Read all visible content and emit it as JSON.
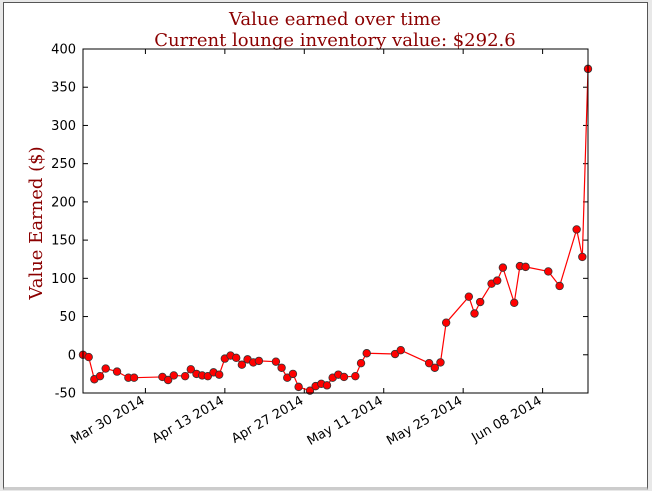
{
  "chart_data": {
    "type": "line",
    "title": "Value earned over time",
    "subtitle": "Current lounge inventory value: $292.6",
    "xlabel": "",
    "ylabel": "Value Earned ($)",
    "xlim": [
      "2014-03-19",
      "2014-06-16"
    ],
    "ylim": [
      -50,
      400
    ],
    "yticks": [
      -50,
      0,
      50,
      100,
      150,
      200,
      250,
      300,
      350,
      400
    ],
    "xticks": [
      {
        "date": "2014-03-30",
        "label": "Mar 30 2014"
      },
      {
        "date": "2014-04-13",
        "label": "Apr 13 2014"
      },
      {
        "date": "2014-04-27",
        "label": "Apr 27 2014"
      },
      {
        "date": "2014-05-11",
        "label": "May 11 2014"
      },
      {
        "date": "2014-05-25",
        "label": "May 25 2014"
      },
      {
        "date": "2014-06-08",
        "label": "Jun 08 2014"
      }
    ],
    "grid": false,
    "series": [
      {
        "name": "value",
        "color": "#ff0000",
        "x": [
          "2014-03-19",
          "2014-03-20",
          "2014-03-21",
          "2014-03-22",
          "2014-03-23",
          "2014-03-25",
          "2014-03-27",
          "2014-03-28",
          "2014-04-02",
          "2014-04-03",
          "2014-04-04",
          "2014-04-06",
          "2014-04-07",
          "2014-04-08",
          "2014-04-09",
          "2014-04-10",
          "2014-04-11",
          "2014-04-12",
          "2014-04-13",
          "2014-04-14",
          "2014-04-15",
          "2014-04-16",
          "2014-04-17",
          "2014-04-18",
          "2014-04-19",
          "2014-04-22",
          "2014-04-23",
          "2014-04-24",
          "2014-04-25",
          "2014-04-26",
          "2014-04-28",
          "2014-04-29",
          "2014-04-30",
          "2014-05-01",
          "2014-05-02",
          "2014-05-03",
          "2014-05-04",
          "2014-05-06",
          "2014-05-07",
          "2014-05-08",
          "2014-05-13",
          "2014-05-14",
          "2014-05-19",
          "2014-05-20",
          "2014-05-21",
          "2014-05-22",
          "2014-05-26",
          "2014-05-27",
          "2014-05-28",
          "2014-05-30",
          "2014-05-31",
          "2014-06-01",
          "2014-06-03",
          "2014-06-04",
          "2014-06-05",
          "2014-06-09",
          "2014-06-11",
          "2014-06-14",
          "2014-06-15",
          "2014-06-16"
        ],
        "y": [
          0,
          -3,
          -32,
          -28,
          -18,
          -22,
          -30,
          -30,
          -29,
          -33,
          -27,
          -28,
          -19,
          -25,
          -27,
          -28,
          -23,
          -26,
          -5,
          -1,
          -4,
          -13,
          -6,
          -10,
          -8,
          -9,
          -17,
          -30,
          -25,
          -42,
          -47,
          -41,
          -38,
          -40,
          -30,
          -26,
          -29,
          -28,
          -11,
          2,
          1,
          6,
          -11,
          -17,
          -10,
          42,
          76,
          54,
          69,
          93,
          97,
          114,
          68,
          116,
          115,
          109,
          90,
          164,
          128,
          374
        ]
      }
    ]
  }
}
